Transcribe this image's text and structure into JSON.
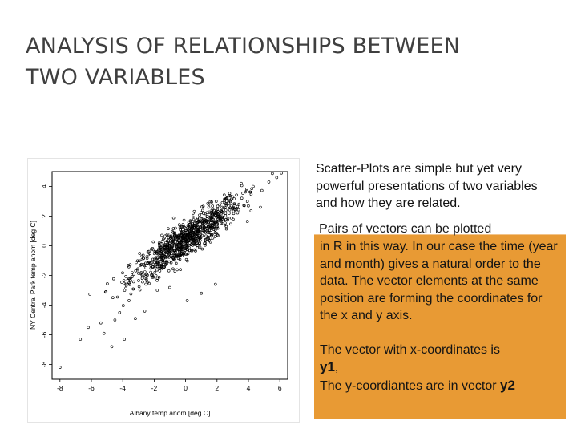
{
  "slide": {
    "title_line1": "ANALYSIS OF RELATIONSHIPS BETWEEN",
    "title_line2": "TWO VARIABLES"
  },
  "intro_text": "Scatter-Plots are simple but yet very powerful presentations of two variables and how they are related.",
  "callout": {
    "line_top": "Pairs of vectors can be plotted",
    "body": "in R in this way. In our case the time (year and month) gives a natural order to the data. The vector elements at the same position are forming the coordinates for the x and y axis.",
    "x_vector_text": "The vector with x-coordinates is",
    "x_vector_name": "y1",
    "x_vector_suffix": ",",
    "y_vector_text": "The y-coordiantes are in vector",
    "y_vector_name": "y2",
    "background_color": "#e89a34"
  },
  "chart_data": {
    "type": "scatter",
    "xlabel": "Albany temp anom [deg C]",
    "ylabel": "NY Central Park temp anom [deg C]",
    "xlim": [
      -8.5,
      6.5
    ],
    "ylim": [
      -9,
      5
    ],
    "x_ticks": [
      "-8",
      "-6",
      "-4",
      "-2",
      "0",
      "2",
      "4",
      "6"
    ],
    "y_ticks": [
      "-8",
      "-6",
      "-4",
      "-2",
      "0",
      "2",
      "4"
    ],
    "point_color": "#000000",
    "point_count": 900,
    "trend_slope": 0.72,
    "outliers": [
      {
        "x": -8.0,
        "y": -8.2
      },
      {
        "x": -6.7,
        "y": -6.3
      },
      {
        "x": -6.2,
        "y": -5.5
      },
      {
        "x": -5.4,
        "y": -5.2
      },
      {
        "x": -5.2,
        "y": -5.9
      },
      {
        "x": -4.7,
        "y": -6.8
      },
      {
        "x": -4.5,
        "y": -5.0
      },
      {
        "x": -4.2,
        "y": -4.5
      },
      {
        "x": -3.9,
        "y": -6.3
      },
      {
        "x": -3.6,
        "y": -3.7
      },
      {
        "x": -3.8,
        "y": -2.6
      },
      {
        "x": -3.2,
        "y": -4.9
      },
      {
        "x": -2.6,
        "y": -4.4
      },
      {
        "x": 0.1,
        "y": -3.7
      },
      {
        "x": 1.0,
        "y": -3.2
      },
      {
        "x": 1.9,
        "y": -2.6
      },
      {
        "x": 2.6,
        "y": 3.0
      },
      {
        "x": 3.0,
        "y": 3.3
      },
      {
        "x": 3.4,
        "y": 2.8
      },
      {
        "x": 3.9,
        "y": 3.7
      },
      {
        "x": 4.3,
        "y": 4.0
      },
      {
        "x": 5.3,
        "y": 4.3
      },
      {
        "x": 5.8,
        "y": 4.6
      },
      {
        "x": 6.1,
        "y": 4.9
      }
    ]
  }
}
